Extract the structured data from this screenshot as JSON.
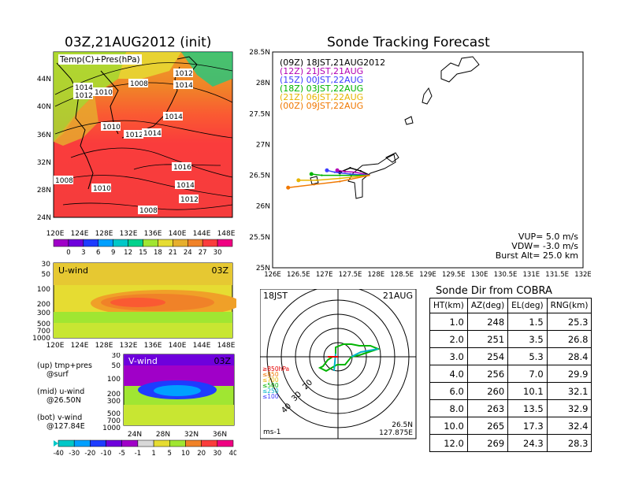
{
  "left_title": "03Z,21AUG2012 (init)",
  "right_title": "Sonde Tracking Forecast",
  "map_panel": {
    "label": "Temp(C)+Pres(hPa)",
    "lat_labels": [
      "44N",
      "40N",
      "36N",
      "32N",
      "28N",
      "24N"
    ],
    "lon_labels": [
      "120E",
      "124E",
      "128E",
      "132E",
      "136E",
      "140E",
      "144E",
      "148E"
    ],
    "isobar_labels": [
      "1012",
      "1014",
      "1008",
      "1014",
      "1012",
      "1010",
      "1014",
      "1010",
      "1012",
      "1014",
      "1016",
      "1008",
      "1010",
      "1014",
      "1012",
      "1008"
    ],
    "colorbar_ticks": [
      "0",
      "3",
      "6",
      "9",
      "12",
      "15",
      "18",
      "21",
      "24",
      "27",
      "30"
    ],
    "colorbar_colors": [
      "#a000c8",
      "#6e00dc",
      "#1e3cff",
      "#00a0ff",
      "#00c8c8",
      "#00d28c",
      "#a0e632",
      "#e6dc32",
      "#e6af2d",
      "#f08228",
      "#fa3c3c",
      "#f00082"
    ]
  },
  "u_panel": {
    "label": "U-wind",
    "time": "03Z",
    "y_labels": [
      "30",
      "50",
      "100",
      "200",
      "300",
      "500",
      "700",
      "1000"
    ],
    "x_labels": [
      "120E",
      "124E",
      "128E",
      "132E",
      "136E",
      "140E",
      "144E",
      "148E"
    ]
  },
  "v_panel": {
    "label": "V-wind",
    "time": "03Z",
    "y_labels": [
      "30",
      "50",
      "100",
      "200",
      "300",
      "500",
      "700",
      "1000"
    ],
    "x_labels": [
      "24N",
      "28N",
      "32N",
      "36N"
    ]
  },
  "side_notes": [
    {
      "line1": "(up) tmp+pres",
      "line2": "@surf"
    },
    {
      "line1": "(mid) u-wind",
      "line2": "@26.50N"
    },
    {
      "line1": "(bot) v-wind",
      "line2": "@127.84E"
    }
  ],
  "wind_colorbar": {
    "ticks": [
      "-40",
      "-30",
      "-20",
      "-10",
      "-5",
      "-1",
      "1",
      "5",
      "10",
      "20",
      "30",
      "40"
    ],
    "colors": [
      "#00c8c8",
      "#00a0ff",
      "#1e3cff",
      "#6e00dc",
      "#a000c8",
      "#d8d8d8",
      "#e6dc32",
      "#a0e632",
      "#f08228",
      "#fa3c3c",
      "#f00082"
    ]
  },
  "tracking": {
    "legend": [
      {
        "text": "(09Z)  18JST,21AUG2012",
        "color": "#000000"
      },
      {
        "text": "(12Z)  21JST,21AUG",
        "color": "#b400b4"
      },
      {
        "text": "(15Z)  00JST,22AUG",
        "color": "#3c3cff"
      },
      {
        "text": "(18Z)  03JST,22AUG",
        "color": "#00b400"
      },
      {
        "text": "(21Z)  06JST,22AUG",
        "color": "#e6b400"
      },
      {
        "text": "(00Z)  09JST,22AUG",
        "color": "#f07800"
      }
    ],
    "notes": [
      "VUP=  5.0  m/s",
      "VDW= -3.0  m/s",
      "Burst Alt=  25.0  km"
    ]
  },
  "chart_data": [
    {
      "type": "line",
      "title": "Sonde Tracking Forecast",
      "xlim": [
        126,
        132
      ],
      "ylim": [
        25,
        28.5
      ],
      "x_ticks": [
        "126E",
        "126.5E",
        "127E",
        "127.5E",
        "128E",
        "128.5E",
        "129E",
        "129.5E",
        "130E",
        "130.5E",
        "131E",
        "131.5E",
        "132E"
      ],
      "y_ticks": [
        "25N",
        "25.5N",
        "26N",
        "26.5N",
        "27N",
        "27.5N",
        "28N",
        "28.5N"
      ],
      "series": [
        {
          "name": "(09Z)  18JST,21AUG2012",
          "color": "#000000",
          "x": [
            127.88,
            127.7,
            127.5,
            127.3
          ],
          "y": [
            26.5,
            26.57,
            26.62,
            26.55
          ]
        },
        {
          "name": "(12Z)  21JST,21AUG",
          "color": "#b400b4",
          "x": [
            127.88,
            127.6,
            127.4,
            127.25
          ],
          "y": [
            26.5,
            26.55,
            26.56,
            26.58
          ]
        },
        {
          "name": "(15Z)  00JST,22AUG",
          "color": "#3c3cff",
          "x": [
            127.88,
            127.5,
            127.2,
            127.05
          ],
          "y": [
            26.5,
            26.52,
            26.55,
            26.58
          ]
        },
        {
          "name": "(18Z)  03JST,22AUG",
          "color": "#00b400",
          "x": [
            127.88,
            127.3,
            126.95,
            126.75
          ],
          "y": [
            26.5,
            26.5,
            26.5,
            26.52
          ]
        },
        {
          "name": "(21Z)  06JST,22AUG",
          "color": "#e6b400",
          "x": [
            127.88,
            127.3,
            126.85,
            126.5
          ],
          "y": [
            26.5,
            26.45,
            26.42,
            26.42
          ]
        },
        {
          "name": "(00Z)  09JST,22AUG",
          "color": "#f07800",
          "x": [
            127.88,
            127.3,
            126.8,
            126.3
          ],
          "y": [
            26.5,
            26.4,
            26.35,
            26.3
          ]
        }
      ]
    },
    {
      "type": "table",
      "title": "Sonde Dir from COBRA",
      "columns": [
        "HT(km)",
        "AZ(deg)",
        "EL(deg)",
        "RNG(km)"
      ],
      "rows": [
        [
          "1.0",
          "248",
          "1.5",
          "25.3"
        ],
        [
          "2.0",
          "251",
          "3.5",
          "26.8"
        ],
        [
          "3.0",
          "254",
          "5.3",
          "28.4"
        ],
        [
          "4.0",
          "256",
          "7.0",
          "29.9"
        ],
        [
          "6.0",
          "260",
          "10.1",
          "32.1"
        ],
        [
          "8.0",
          "263",
          "13.5",
          "32.9"
        ],
        [
          "10.0",
          "265",
          "17.3",
          "32.4"
        ],
        [
          "12.0",
          "269",
          "24.3",
          "28.3"
        ]
      ]
    }
  ],
  "hodograph": {
    "time_label": "18JST",
    "date_label": "21AUG",
    "ring_labels": [
      "20",
      "30",
      "40"
    ],
    "level_legend": [
      {
        "text": "≥850hPa",
        "color": "#e60000"
      },
      {
        "text": "≤850",
        "color": "#f07800"
      },
      {
        "text": "≤700",
        "color": "#e6b400"
      },
      {
        "text": "≤500",
        "color": "#00b400"
      },
      {
        "text": "≤250",
        "color": "#00b4c8"
      },
      {
        "text": "≤100",
        "color": "#3c3cff"
      }
    ],
    "units": "ms-1",
    "location_lat": "26.5N",
    "location_lon": "127.875E"
  }
}
